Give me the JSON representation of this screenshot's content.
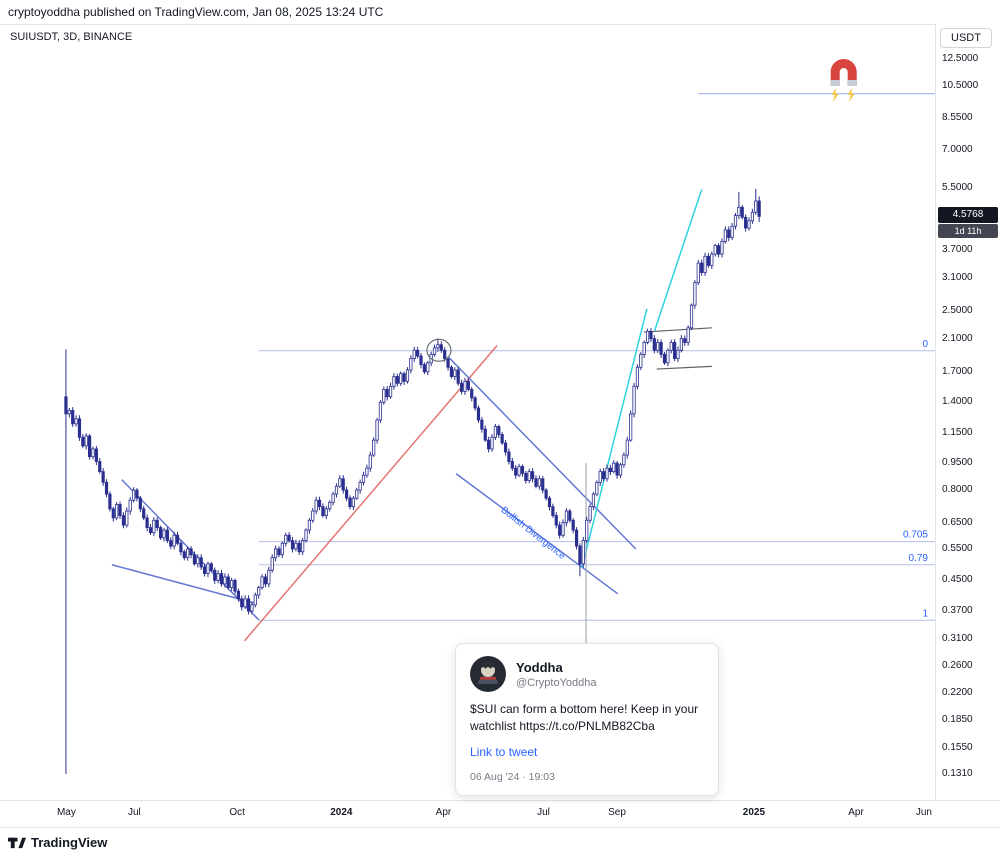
{
  "header": {
    "publish_text": "cryptoyoddha published on TradingView.com, Jan 08, 2025 13:24 UTC"
  },
  "chart": {
    "legend": "SUIUSDT, 3D, BINANCE",
    "currency_button": "USDT",
    "price_badge": {
      "price": "4.5768",
      "countdown": "1d 11h"
    },
    "colors": {
      "up": "#ffffff",
      "down": "#2a2f8f",
      "blue": "#6478d4",
      "red": "#e57373",
      "cyan": "#2fd3e0",
      "dark": "#5c6066",
      "fib": "#2962ff",
      "fib_line": "#b4bfe6",
      "magnet_line": "#93a4e0",
      "anchor": "#9aa0a6",
      "circle": "#6b6f76"
    }
  },
  "chart_data": {
    "type": "candlestick",
    "symbol": "SUIUSDT",
    "interval": "3D",
    "exchange": "BINANCE",
    "scale": "log",
    "price_range": {
      "min": 0.111,
      "max": 15.6
    },
    "index_range": {
      "min": -19.5,
      "max": 257
    },
    "y_ticks": [
      {
        "label": "12.5000",
        "value": 12.5
      },
      {
        "label": "10.5000",
        "value": 10.5
      },
      {
        "label": "8.5500",
        "value": 8.55
      },
      {
        "label": "7.0000",
        "value": 7.0
      },
      {
        "label": "5.5000",
        "value": 5.5
      },
      {
        "label": "3.7000",
        "value": 3.7
      },
      {
        "label": "3.1000",
        "value": 3.1
      },
      {
        "label": "2.5000",
        "value": 2.5
      },
      {
        "label": "2.1000",
        "value": 2.1
      },
      {
        "label": "1.7000",
        "value": 1.7
      },
      {
        "label": "1.4000",
        "value": 1.4
      },
      {
        "label": "1.1500",
        "value": 1.15
      },
      {
        "label": "0.9500",
        "value": 0.95
      },
      {
        "label": "0.8000",
        "value": 0.8
      },
      {
        "label": "0.6500",
        "value": 0.65
      },
      {
        "label": "0.5500",
        "value": 0.55
      },
      {
        "label": "0.4500",
        "value": 0.45
      },
      {
        "label": "0.3700",
        "value": 0.37
      },
      {
        "label": "0.3100",
        "value": 0.31
      },
      {
        "label": "0.2600",
        "value": 0.26
      },
      {
        "label": "0.2200",
        "value": 0.22
      },
      {
        "label": "0.1850",
        "value": 0.185
      },
      {
        "label": "0.1550",
        "value": 0.155
      },
      {
        "label": "0.1310",
        "value": 0.131
      }
    ],
    "x_ticks": [
      {
        "label": "May",
        "i": 0
      },
      {
        "label": "Jul",
        "i": 21
      },
      {
        "label": "Oct",
        "i": 51
      },
      {
        "label": "2024",
        "i": 82,
        "major": true
      },
      {
        "label": "Apr",
        "i": 112
      },
      {
        "label": "Jul",
        "i": 142
      },
      {
        "label": "Sep",
        "i": 163
      },
      {
        "label": "2025",
        "i": 204,
        "major": true
      },
      {
        "label": "Apr",
        "i": 234
      },
      {
        "label": "Jun",
        "i": 254
      }
    ],
    "current_price": 4.5768,
    "candles": {
      "closes": [
        1.3,
        1.33,
        1.22,
        1.26,
        1.12,
        1.06,
        1.13,
        0.99,
        1.04,
        0.96,
        0.9,
        0.84,
        0.78,
        0.71,
        0.67,
        0.73,
        0.68,
        0.64,
        0.7,
        0.75,
        0.8,
        0.76,
        0.71,
        0.67,
        0.63,
        0.61,
        0.66,
        0.63,
        0.59,
        0.62,
        0.58,
        0.56,
        0.6,
        0.57,
        0.54,
        0.52,
        0.55,
        0.53,
        0.5,
        0.52,
        0.49,
        0.47,
        0.5,
        0.48,
        0.45,
        0.47,
        0.44,
        0.46,
        0.43,
        0.45,
        0.42,
        0.4,
        0.38,
        0.4,
        0.37,
        0.385,
        0.41,
        0.43,
        0.46,
        0.44,
        0.48,
        0.52,
        0.55,
        0.53,
        0.57,
        0.6,
        0.58,
        0.55,
        0.57,
        0.54,
        0.58,
        0.62,
        0.66,
        0.7,
        0.75,
        0.72,
        0.68,
        0.71,
        0.74,
        0.78,
        0.82,
        0.86,
        0.8,
        0.76,
        0.72,
        0.76,
        0.8,
        0.84,
        0.88,
        0.92,
        1.0,
        1.1,
        1.25,
        1.4,
        1.52,
        1.45,
        1.55,
        1.65,
        1.58,
        1.68,
        1.6,
        1.72,
        1.85,
        1.95,
        1.88,
        1.78,
        1.7,
        1.8,
        1.9,
        1.98,
        2.02,
        1.95,
        1.85,
        1.75,
        1.65,
        1.72,
        1.58,
        1.5,
        1.6,
        1.52,
        1.44,
        1.35,
        1.25,
        1.18,
        1.1,
        1.04,
        1.12,
        1.2,
        1.14,
        1.08,
        1.02,
        0.96,
        0.92,
        0.88,
        0.93,
        0.89,
        0.85,
        0.9,
        0.86,
        0.82,
        0.86,
        0.8,
        0.76,
        0.72,
        0.68,
        0.64,
        0.6,
        0.65,
        0.7,
        0.66,
        0.62,
        0.56,
        0.5,
        0.58,
        0.66,
        0.72,
        0.78,
        0.84,
        0.9,
        0.86,
        0.92,
        0.9,
        0.95,
        0.88,
        0.94,
        1.0,
        1.1,
        1.3,
        1.55,
        1.75,
        1.9,
        2.05,
        2.2,
        2.1,
        1.95,
        2.05,
        1.9,
        1.8,
        1.95,
        2.05,
        1.85,
        1.95,
        2.1,
        2.05,
        2.25,
        2.6,
        3.0,
        3.4,
        3.2,
        3.55,
        3.35,
        3.6,
        3.8,
        3.6,
        3.9,
        4.2,
        4.0,
        4.3,
        4.6,
        4.85,
        4.55,
        4.25,
        4.45,
        4.7,
        5.05,
        4.58
      ],
      "overrides": {
        "0": [
          1.45,
          1.96,
          0.131,
          1.3
        ],
        "110": [
          1.98,
          2.1,
          1.93,
          2.02
        ],
        "152": [
          0.56,
          0.57,
          0.462,
          0.5
        ],
        "199": [
          4.6,
          5.35,
          4.5,
          4.85
        ],
        "204": [
          4.7,
          5.45,
          4.62,
          5.05
        ],
        "205": [
          5.05,
          5.2,
          4.42,
          4.5768
        ]
      }
    },
    "fib_levels": [
      {
        "label": "0",
        "price": 1.944,
        "start_i": 57
      },
      {
        "label": "0.705",
        "price": 0.576,
        "start_i": 57
      },
      {
        "label": "0.79",
        "price": 0.497,
        "start_i": 57
      },
      {
        "label": "1",
        "price": 0.349,
        "start_i": 57
      }
    ],
    "magnet_line": {
      "price": 10.0,
      "start_i": 187
    },
    "magnet": {
      "i": 230
    },
    "trendlines": [
      {
        "name": "wedge-upper",
        "color": "blue",
        "from": [
          16.5,
          0.855
        ],
        "to": [
          57,
          0.35
        ]
      },
      {
        "name": "wedge-lower",
        "color": "blue",
        "from": [
          13.6,
          0.497
        ],
        "to": [
          56.4,
          0.388
        ]
      },
      {
        "name": "bull-trendline",
        "color": "red",
        "from": [
          52.8,
          0.306
        ],
        "to": [
          127.5,
          2.01
        ]
      },
      {
        "name": "channel-upper",
        "color": "blue",
        "from": [
          113.3,
          1.86
        ],
        "to": [
          168.5,
          0.55
        ]
      },
      {
        "name": "channel-lower",
        "color": "blue",
        "from": [
          115.4,
          0.888
        ],
        "to": [
          163.2,
          0.413
        ]
      },
      {
        "name": "cyan-support-1",
        "color": "cyan",
        "from": [
          152.6,
          0.488
        ],
        "to": [
          171.8,
          2.54
        ]
      },
      {
        "name": "cyan-support-2",
        "color": "cyan",
        "from": [
          174.1,
          2.21
        ],
        "to": [
          188,
          5.43
        ]
      },
      {
        "name": "box-upper",
        "color": "dark",
        "from": [
          170.9,
          2.19
        ],
        "to": [
          191,
          2.25
        ]
      },
      {
        "name": "box-lower",
        "color": "dark",
        "from": [
          174.7,
          1.73
        ],
        "to": [
          191,
          1.76
        ]
      }
    ],
    "circle": {
      "i": 110.3,
      "price": 1.95
    },
    "divergence_label": {
      "text": "Bullish Divergence",
      "i": 128.5,
      "price": 0.7,
      "angle": 38
    },
    "anchor_line": {
      "i": 153.8,
      "price_top": 0.95,
      "price_bottom": 0.302
    }
  },
  "tweet": {
    "name": "Yoddha",
    "handle": "@CryptoYoddha",
    "body": "$SUI can form a bottom here! Keep in your watchlist https://t.co/PNLMB82Cba",
    "link": "Link to tweet",
    "timestamp": "06 Aug '24 · 19:03"
  },
  "footer": {
    "brand": "TradingView"
  }
}
